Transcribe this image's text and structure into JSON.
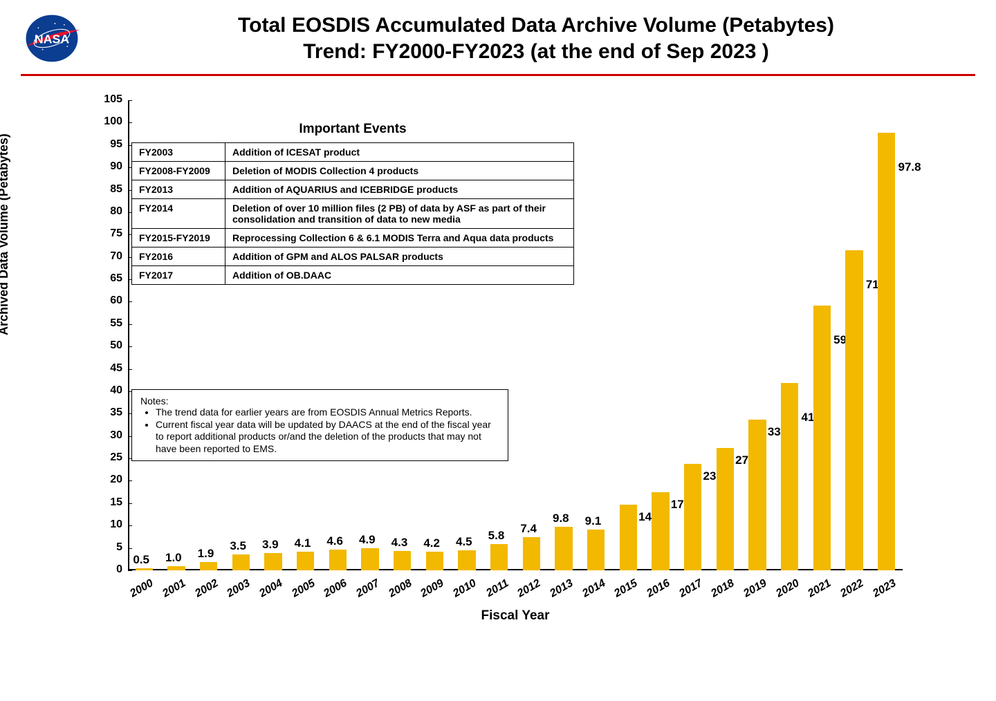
{
  "title": {
    "line1": "Total EOSDIS Accumulated Data Archive Volume (Petabytes)",
    "line2": "Trend: FY2000-FY2023 (at the end of Sep 2023 )",
    "fontsize": 30,
    "color": "#000000"
  },
  "rule_color": "#d00000",
  "chart": {
    "type": "bar",
    "y_title": "Archived Data Volume (Petabytes)",
    "x_title": "Fiscal Year",
    "ylim": [
      0,
      105
    ],
    "ytick_step": 5,
    "yticks": [
      0,
      5,
      10,
      15,
      20,
      25,
      30,
      35,
      40,
      45,
      50,
      55,
      60,
      65,
      70,
      75,
      80,
      85,
      90,
      95,
      100,
      105
    ],
    "title_fontsize": 19,
    "label_fontsize": 18,
    "tick_fontsize": 16,
    "bar_color": "#f2b900",
    "bar_width_ratio": 0.55,
    "background_color": "#ffffff",
    "axis_color": "#000000",
    "categories": [
      "2000",
      "2001",
      "2002",
      "2003",
      "2004",
      "2005",
      "2006",
      "2007",
      "2008",
      "2009",
      "2010",
      "2011",
      "2012",
      "2013",
      "2014",
      "2015",
      "2016",
      "2017",
      "2018",
      "2019",
      "2020",
      "2021",
      "2022",
      "2023"
    ],
    "values": [
      0.5,
      1.0,
      1.9,
      3.5,
      3.9,
      4.1,
      4.6,
      4.9,
      4.3,
      4.2,
      4.5,
      5.8,
      7.4,
      9.8,
      9.1,
      14.6,
      17.5,
      23.8,
      27.4,
      33.6,
      41.9,
      59.2,
      71.5,
      97.8
    ],
    "value_labels": [
      "0.5",
      "1.0",
      "1.9",
      "3.5",
      "3.9",
      "4.1",
      "4.6",
      "4.9",
      "4.3",
      "4.2",
      "4.5",
      "5.8",
      "7.4",
      "9.8",
      "9.1",
      "14.6",
      "17.5",
      "23.8",
      "27.4",
      "33.6",
      "41.9",
      "59.2",
      "71.5",
      "97.8"
    ],
    "value_label_fontsize": 17
  },
  "events": {
    "title": "Important Events",
    "title_fontsize": 19,
    "cell_fontsize": 14,
    "rows": [
      {
        "period": "FY2003",
        "desc": "Addition of ICESAT product"
      },
      {
        "period": "FY2008-FY2009",
        "desc": "Deletion of  MODIS Collection 4 products"
      },
      {
        "period": "FY2013",
        "desc": "Addition of AQUARIUS and ICEBRIDGE products"
      },
      {
        "period": "FY2014",
        "desc": "Deletion of over 10 million files (2 PB) of data by ASF as part of their consolidation and transition of data to new media"
      },
      {
        "period": "FY2015-FY2019",
        "desc": "Reprocessing  Collection 6 & 6.1 MODIS Terra and Aqua data products"
      },
      {
        "period": "FY2016",
        "desc": "Addition of GPM and ALOS PALSAR products"
      },
      {
        "period": "FY2017",
        "desc": "Addition of OB.DAAC"
      }
    ]
  },
  "notes": {
    "title": "Notes:",
    "fontsize": 14,
    "items": [
      "The trend data for earlier years are from EOSDIS Annual Metrics Reports.",
      "Current fiscal year data will be updated by DAACS at the end of the fiscal year to report additional products or/and the deletion of the products that may not have been reported to EMS."
    ]
  }
}
